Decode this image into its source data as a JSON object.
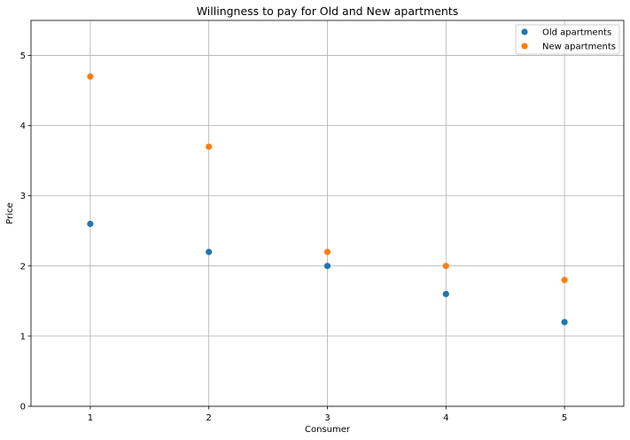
{
  "chart_data": {
    "type": "scatter",
    "title": "Willingness to pay for Old and New apartments",
    "xlabel": "Consumer",
    "ylabel": "Price",
    "xlim": [
      0.5,
      5.5
    ],
    "ylim": [
      0,
      5.5
    ],
    "xticks": [
      1,
      2,
      3,
      4,
      5
    ],
    "yticks": [
      0,
      1,
      2,
      3,
      4,
      5
    ],
    "grid": true,
    "legend_position": "top-right",
    "series": [
      {
        "name": "Old apartments",
        "color": "#1f77b4",
        "x": [
          1,
          2,
          3,
          4,
          5
        ],
        "y": [
          2.6,
          2.2,
          2.0,
          1.6,
          1.2
        ]
      },
      {
        "name": "New apartments",
        "color": "#ff7f0e",
        "x": [
          1,
          2,
          3,
          4,
          5
        ],
        "y": [
          4.7,
          3.7,
          2.2,
          2.0,
          1.8
        ]
      }
    ]
  }
}
